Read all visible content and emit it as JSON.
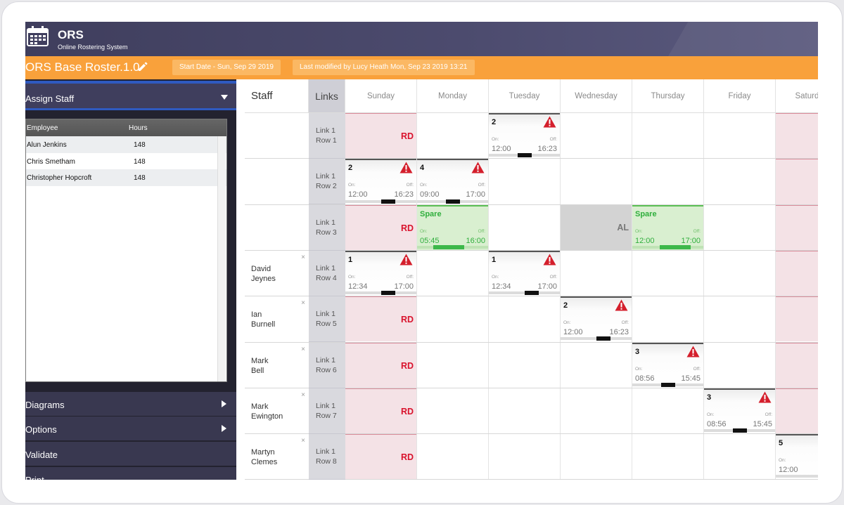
{
  "app": {
    "title": "ORS",
    "subtitle": "Online Rostering System"
  },
  "roster": {
    "name": "ORS Base Roster.1.0",
    "start_date": "Start Date - Sun, Sep 29 2019",
    "last_modified": "Last modified by Lucy Heath Mon, Sep 23 2019 13:21"
  },
  "sidebar": {
    "assign_label": "Assign Staff",
    "table_headers": [
      "Employee",
      "Hours"
    ],
    "employees": [
      {
        "name": "Alun Jenkins",
        "hours": "148"
      },
      {
        "name": "Chris Smetham",
        "hours": "148"
      },
      {
        "name": "Christopher Hopcroft",
        "hours": "148"
      }
    ],
    "menu": [
      "Diagrams",
      "Options",
      "Validate",
      "Print"
    ]
  },
  "grid": {
    "staff_header": "Staff",
    "links_header": "Links",
    "days": [
      "Sunday",
      "Monday",
      "Tuesday",
      "Wednesday",
      "Thursday",
      "Friday",
      "Saturday"
    ],
    "rows": [
      {
        "staff": "",
        "link": [
          "Link 1",
          "Row 1"
        ]
      },
      {
        "staff": "",
        "link": [
          "Link 1",
          "Row 2"
        ]
      },
      {
        "staff": "",
        "link": [
          "Link 1",
          "Row 3"
        ]
      },
      {
        "staff": [
          "David",
          "Jeynes"
        ],
        "link": [
          "Link 1",
          "Row 4"
        ]
      },
      {
        "staff": [
          "Ian",
          "Burnell"
        ],
        "link": [
          "Link 1",
          "Row 5"
        ]
      },
      {
        "staff": [
          "Mark",
          "Bell"
        ],
        "link": [
          "Link 1",
          "Row 6"
        ]
      },
      {
        "staff": [
          "Mark",
          "Ewington"
        ],
        "link": [
          "Link 1",
          "Row 7"
        ]
      },
      {
        "staff": [
          "Martyn",
          "Clemes"
        ],
        "link": [
          "Link 1",
          "Row 8"
        ]
      }
    ],
    "remove_symbol": "×",
    "rest_day_label": "RD",
    "annual_leave_label": "AL",
    "on_label": "On:",
    "off_label": "Off:",
    "cells": [
      {
        "row": 0,
        "day": 0,
        "kind": "rd"
      },
      {
        "row": 0,
        "day": 2,
        "kind": "shift",
        "num": "2",
        "warn": true,
        "on": "12:00",
        "off": "16:23",
        "bar_pos": 0.5
      },
      {
        "row": 1,
        "day": 0,
        "kind": "shift",
        "num": "2",
        "warn": true,
        "on": "12:00",
        "off": "16:23",
        "bar_pos": 0.6
      },
      {
        "row": 1,
        "day": 1,
        "kind": "shift",
        "num": "4",
        "warn": true,
        "on": "09:00",
        "off": "17:00",
        "bar_pos": 0.5
      },
      {
        "row": 2,
        "day": 0,
        "kind": "rd"
      },
      {
        "row": 2,
        "day": 1,
        "kind": "shift",
        "num": "Spare",
        "spare": true,
        "warn": false,
        "on": "05:45",
        "off": "16:00",
        "bar_pos": 0.45
      },
      {
        "row": 2,
        "day": 3,
        "kind": "al"
      },
      {
        "row": 2,
        "day": 4,
        "kind": "shift",
        "num": "Spare",
        "spare": true,
        "warn": false,
        "on": "12:00",
        "off": "17:00",
        "bar_pos": 0.6
      },
      {
        "row": 3,
        "day": 0,
        "kind": "shift",
        "num": "1",
        "warn": true,
        "on": "12:34",
        "off": "17:00",
        "bar_pos": 0.6
      },
      {
        "row": 3,
        "day": 2,
        "kind": "shift",
        "num": "1",
        "warn": true,
        "on": "12:34",
        "off": "17:00",
        "bar_pos": 0.6
      },
      {
        "row": 4,
        "day": 0,
        "kind": "rd"
      },
      {
        "row": 4,
        "day": 3,
        "kind": "shift",
        "num": "2",
        "warn": true,
        "on": "12:00",
        "off": "16:23",
        "bar_pos": 0.6
      },
      {
        "row": 5,
        "day": 0,
        "kind": "rd"
      },
      {
        "row": 5,
        "day": 4,
        "kind": "shift",
        "num": "3",
        "warn": true,
        "on": "08:56",
        "off": "15:45",
        "bar_pos": 0.5
      },
      {
        "row": 6,
        "day": 0,
        "kind": "rd"
      },
      {
        "row": 6,
        "day": 5,
        "kind": "shift",
        "num": "3",
        "warn": true,
        "on": "08:56",
        "off": "15:45",
        "bar_pos": 0.5
      },
      {
        "row": 7,
        "day": 0,
        "kind": "rd"
      },
      {
        "row": 7,
        "day": 6,
        "kind": "shift",
        "num": "5",
        "warn": false,
        "on": "12:00",
        "off": "",
        "bar_pos": 0.9
      },
      {
        "row": 0,
        "day": 6,
        "kind": "rd"
      },
      {
        "row": 1,
        "day": 6,
        "kind": "rd"
      },
      {
        "row": 2,
        "day": 6,
        "kind": "rd"
      },
      {
        "row": 3,
        "day": 6,
        "kind": "rd"
      },
      {
        "row": 4,
        "day": 6,
        "kind": "rd"
      },
      {
        "row": 5,
        "day": 6,
        "kind": "rd"
      },
      {
        "row": 6,
        "day": 6,
        "kind": "rd"
      }
    ]
  },
  "colors": {
    "header_bg": "#4c4b6e",
    "accent_orange": "#f9a13b",
    "rest_day_red": "#d9132d",
    "spare_green": "#2fae3c",
    "warning_red": "#d41f2c"
  }
}
